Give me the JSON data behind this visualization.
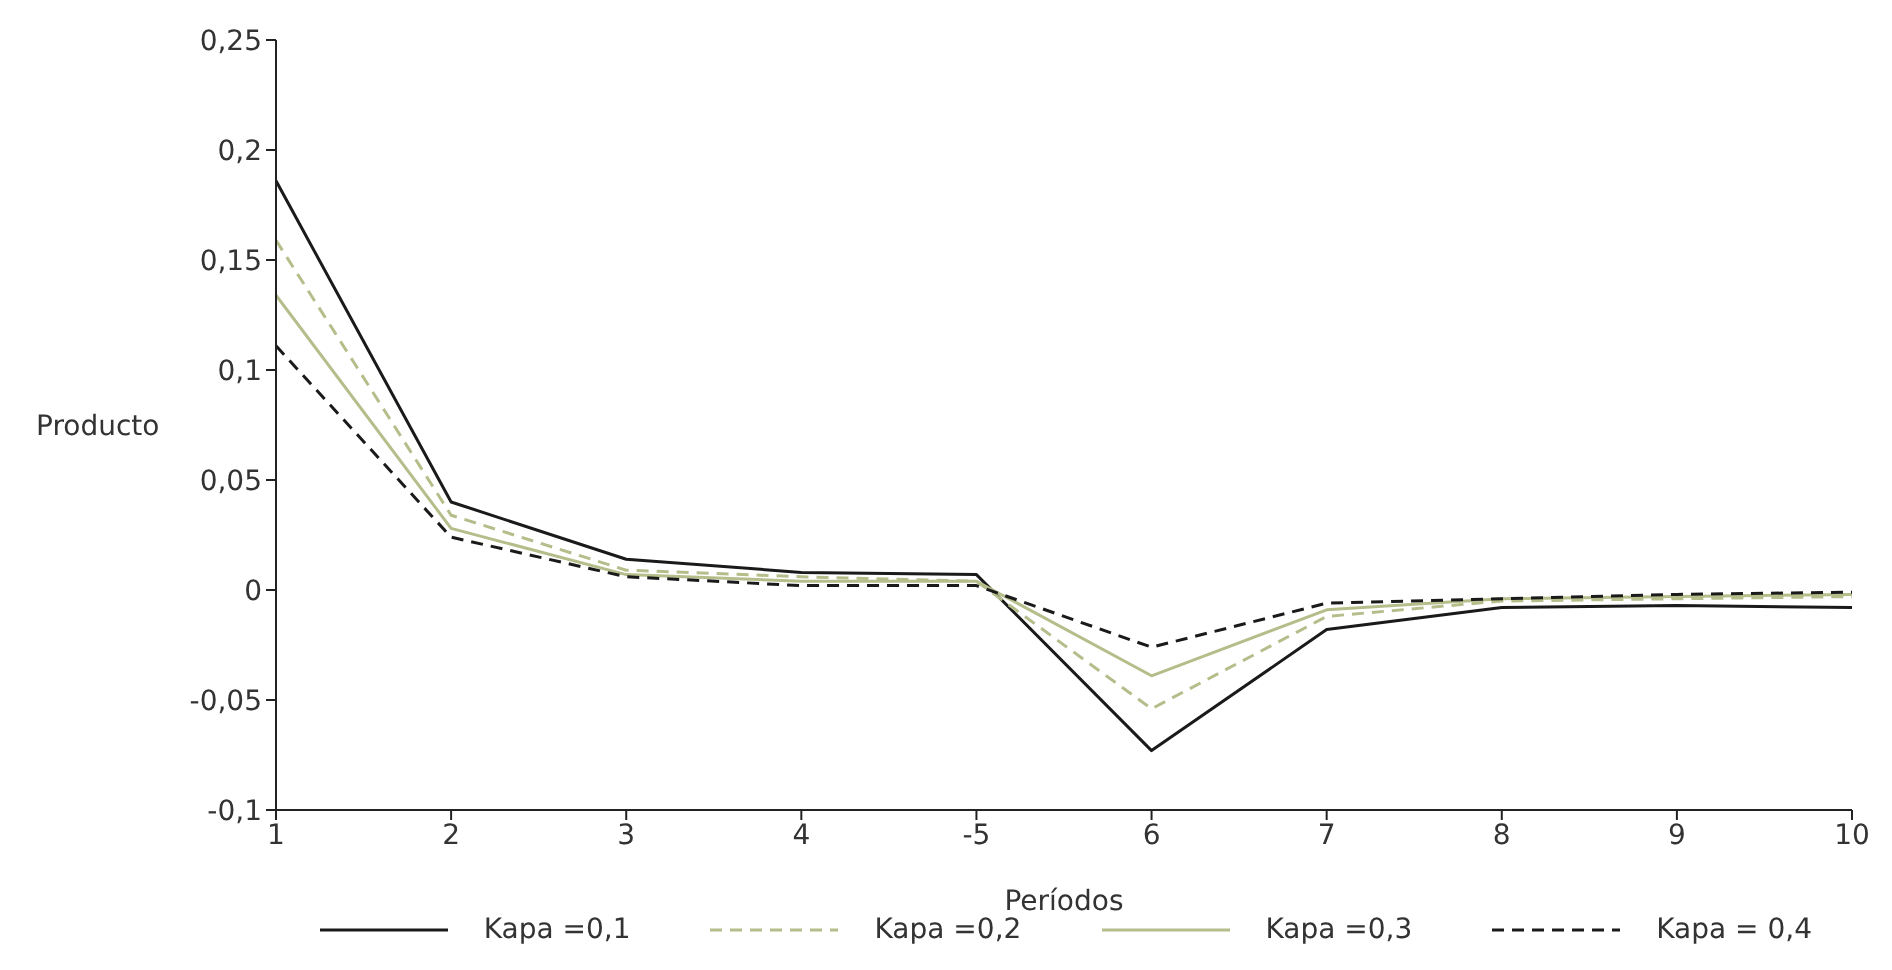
{
  "chart_data": {
    "type": "line",
    "xlabel": "Períodos",
    "ylabel": "Producto",
    "categories": [
      "1",
      "2",
      "3",
      "4",
      "-5",
      "6",
      "7",
      "8",
      "9",
      "10"
    ],
    "ylim": [
      -0.1,
      0.25
    ],
    "yticks": [
      {
        "value": -0.1,
        "label": "-0,1"
      },
      {
        "value": -0.05,
        "label": "-0,05"
      },
      {
        "value": 0,
        "label": "0"
      },
      {
        "value": 0.05,
        "label": "0,05"
      },
      {
        "value": 0.1,
        "label": "0,1"
      },
      {
        "value": 0.15,
        "label": "0,15"
      },
      {
        "value": 0.2,
        "label": "0,2"
      },
      {
        "value": 0.25,
        "label": "0,25"
      }
    ],
    "grid": false,
    "legend": "bottom",
    "marker": "none",
    "series": [
      {
        "name": "Kapa =0,1",
        "color": "#1a1a1a",
        "line_style": "solid",
        "values": [
          0.186,
          0.04,
          0.014,
          0.008,
          0.007,
          -0.073,
          -0.018,
          -0.008,
          -0.007,
          -0.008
        ]
      },
      {
        "name": "Kapa =0,2",
        "color": "#b5bd8a",
        "line_style": "dashed",
        "values": [
          0.159,
          0.034,
          0.009,
          0.006,
          0.004,
          -0.054,
          -0.012,
          -0.005,
          -0.004,
          -0.003
        ]
      },
      {
        "name": "Kapa =0,3",
        "color": "#b5bd8a",
        "line_style": "solid",
        "values": [
          0.134,
          0.028,
          0.007,
          0.004,
          0.004,
          -0.039,
          -0.009,
          -0.004,
          -0.003,
          -0.002
        ]
      },
      {
        "name": "Kapa = 0,4",
        "color": "#1a1a1a",
        "line_style": "dashed",
        "values": [
          0.111,
          0.024,
          0.006,
          0.002,
          0.002,
          -0.026,
          -0.006,
          -0.004,
          -0.002,
          -0.001
        ]
      }
    ]
  }
}
